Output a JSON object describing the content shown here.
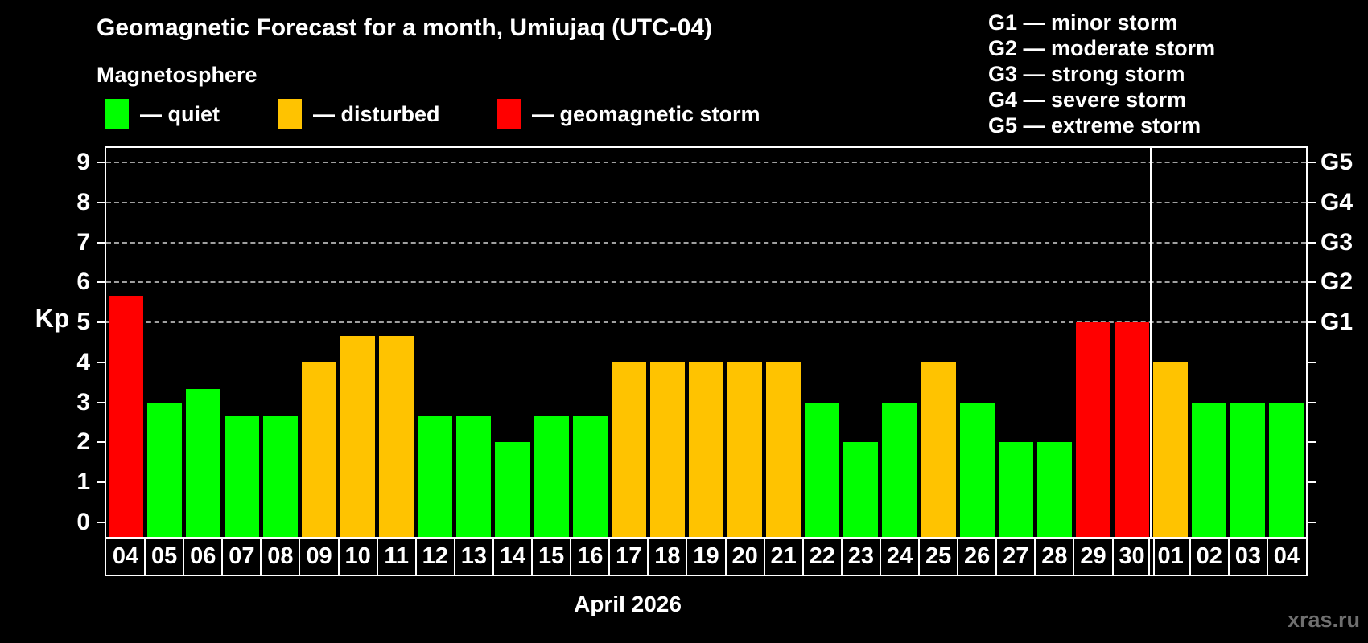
{
  "header": {
    "title": "Geomagnetic Forecast for a month, Umiujaq (UTC-04)",
    "subtitle": "Magnetosphere"
  },
  "legend": {
    "items": [
      {
        "key": "quiet",
        "label": "— quiet",
        "color": "#00ff00"
      },
      {
        "key": "disturbed",
        "label": "— disturbed",
        "color": "#ffc300"
      },
      {
        "key": "storm",
        "label": "— geomagnetic storm",
        "color": "#ff0000"
      }
    ]
  },
  "g_legend": [
    "G1 — minor storm",
    "G2 — moderate storm",
    "G3 — strong storm",
    "G4 — severe storm",
    "G5 — extreme storm"
  ],
  "axes": {
    "y_label": "Kp",
    "y_ticks": [
      "0",
      "1",
      "2",
      "3",
      "4",
      "5",
      "6",
      "7",
      "8",
      "9"
    ],
    "right_scale": [
      {
        "kp": 5,
        "label": "G1"
      },
      {
        "kp": 6,
        "label": "G2"
      },
      {
        "kp": 7,
        "label": "G3"
      },
      {
        "kp": 8,
        "label": "G4"
      },
      {
        "kp": 9,
        "label": "G5"
      }
    ],
    "x_label": "April 2026"
  },
  "watermark": "xras.ru",
  "chart_data": {
    "type": "bar",
    "title": "Geomagnetic Forecast for a month, Umiujaq (UTC-04)",
    "xlabel": "April 2026",
    "ylabel": "Kp",
    "ylim": [
      0,
      9.4
    ],
    "grid": "dashed horizontal lines at Kp 5-9 (G1-G5 levels)",
    "legend_position": "top",
    "categories": [
      "04",
      "05",
      "06",
      "07",
      "08",
      "09",
      "10",
      "11",
      "12",
      "13",
      "14",
      "15",
      "16",
      "17",
      "18",
      "19",
      "20",
      "21",
      "22",
      "23",
      "24",
      "25",
      "26",
      "27",
      "28",
      "29",
      "30",
      "01",
      "02",
      "03",
      "04"
    ],
    "values": [
      5.67,
      3,
      3.33,
      2.67,
      2.67,
      4,
      4.67,
      4.67,
      2.67,
      2.67,
      2,
      2.67,
      2.67,
      4,
      4,
      4,
      4,
      4,
      3,
      2,
      3,
      4,
      3,
      2,
      2,
      5,
      5,
      4,
      3,
      3,
      3
    ],
    "statuses": [
      "storm",
      "quiet",
      "quiet",
      "quiet",
      "quiet",
      "disturbed",
      "disturbed",
      "disturbed",
      "quiet",
      "quiet",
      "quiet",
      "quiet",
      "quiet",
      "disturbed",
      "disturbed",
      "disturbed",
      "disturbed",
      "disturbed",
      "quiet",
      "quiet",
      "quiet",
      "disturbed",
      "quiet",
      "quiet",
      "quiet",
      "storm",
      "storm",
      "disturbed",
      "quiet",
      "quiet",
      "quiet"
    ],
    "status_colors": {
      "quiet": "#00ff00",
      "disturbed": "#ffc300",
      "storm": "#ff0000"
    },
    "gridlines_kp": [
      5,
      6,
      7,
      8,
      9
    ],
    "month_separator_after_index": 26
  }
}
